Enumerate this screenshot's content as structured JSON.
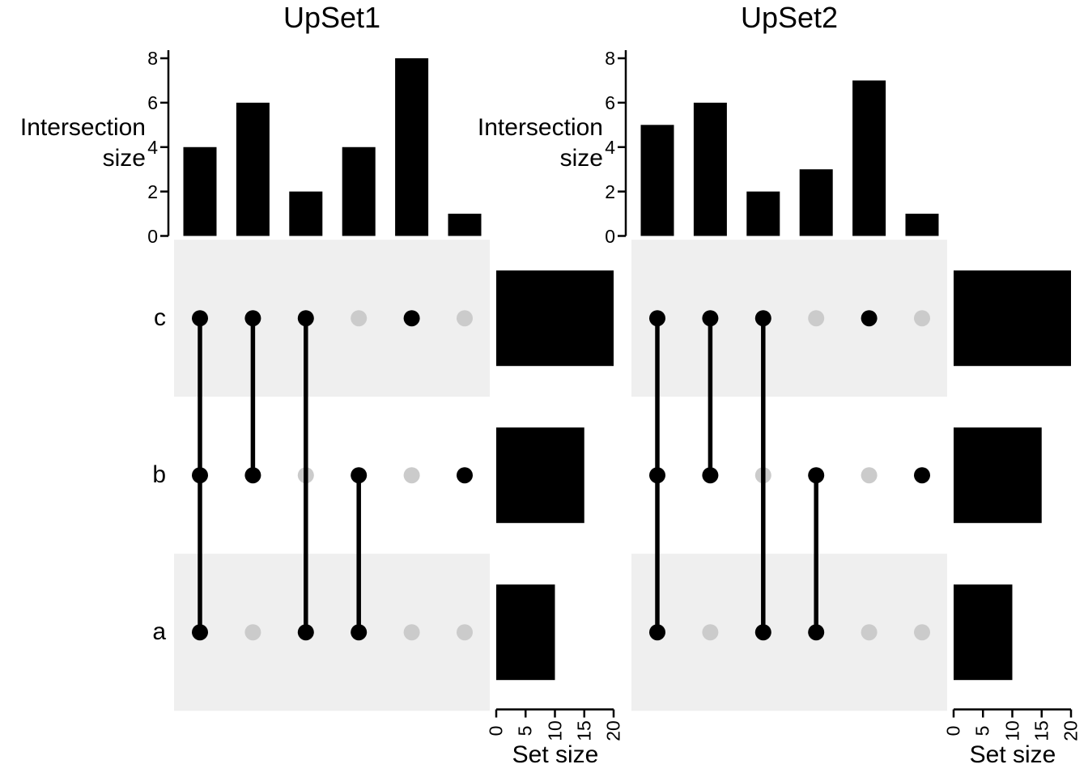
{
  "colors": {
    "background": "#ffffff",
    "bar": "#000000",
    "dot_active": "#000000",
    "dot_inactive": "#cbcbcb",
    "stripe": "#efefef",
    "axis": "#000000",
    "text": "#000000"
  },
  "chart_data": [
    {
      "type": "upset",
      "title": "UpSet1",
      "ylabel": "Intersection size",
      "set_size_label": "Set size",
      "sets": [
        "c",
        "b",
        "a"
      ],
      "set_sizes": [
        20,
        15,
        10
      ],
      "intersections": [
        {
          "members": [
            "c",
            "b",
            "a"
          ],
          "size": 4
        },
        {
          "members": [
            "c",
            "b"
          ],
          "size": 6
        },
        {
          "members": [
            "c",
            "a"
          ],
          "size": 2
        },
        {
          "members": [
            "b",
            "a"
          ],
          "size": 4
        },
        {
          "members": [
            "c"
          ],
          "size": 8
        },
        {
          "members": [
            "b"
          ],
          "size": 1
        }
      ],
      "ylim": [
        0,
        8
      ],
      "y_ticks": [
        0,
        2,
        4,
        6,
        8
      ],
      "set_size_lim": [
        0,
        20
      ],
      "set_size_ticks": [
        0,
        5,
        10,
        15,
        20
      ],
      "row_labels_shown": true,
      "legend": "none",
      "grid": "off"
    },
    {
      "type": "upset",
      "title": "UpSet2",
      "ylabel": "Intersection size",
      "set_size_label": "Set size",
      "sets": [
        "c",
        "b",
        "a"
      ],
      "set_sizes": [
        20,
        15,
        10
      ],
      "intersections": [
        {
          "members": [
            "c",
            "b",
            "a"
          ],
          "size": 5
        },
        {
          "members": [
            "c",
            "b"
          ],
          "size": 6
        },
        {
          "members": [
            "c",
            "a"
          ],
          "size": 2
        },
        {
          "members": [
            "b",
            "a"
          ],
          "size": 3
        },
        {
          "members": [
            "c"
          ],
          "size": 7
        },
        {
          "members": [
            "b"
          ],
          "size": 1
        }
      ],
      "ylim": [
        0,
        8
      ],
      "y_ticks": [
        0,
        2,
        4,
        6,
        8
      ],
      "set_size_lim": [
        0,
        20
      ],
      "set_size_ticks": [
        0,
        5,
        10,
        15,
        20
      ],
      "row_labels_shown": false,
      "legend": "none",
      "grid": "off"
    }
  ]
}
